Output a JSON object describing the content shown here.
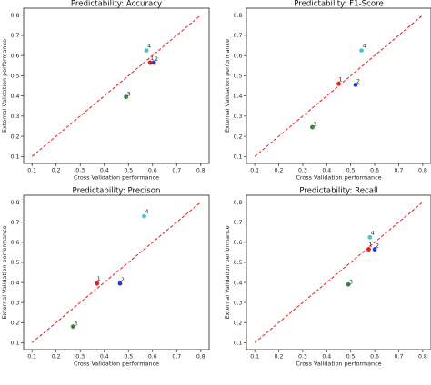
{
  "colors": {
    "diagonal": "#e8191b",
    "point_1": "#e8191b",
    "point_2": "#1f3bd6",
    "point_3": "#2e8b3a",
    "point_4": "#4cc7c7"
  },
  "chart_data": [
    {
      "type": "scatter",
      "title": "Predictability: Accuracy",
      "xlabel": "Cross Validation performance",
      "ylabel": "External Validation performance",
      "xlim": [
        0.1,
        0.8
      ],
      "ylim": [
        0.1,
        0.8
      ],
      "xticks": [
        "0.1",
        "0.2",
        "0.3",
        "0.4",
        "0.5",
        "0.6",
        "0.7",
        "0.8"
      ],
      "yticks": [
        "0.1",
        "0.2",
        "0.3",
        "0.4",
        "0.5",
        "0.6",
        "0.7",
        "0.8"
      ],
      "reference_line": "y = x",
      "points": [
        {
          "label": "1",
          "x": 0.59,
          "y": 0.565
        },
        {
          "label": "2",
          "x": 0.605,
          "y": 0.565
        },
        {
          "label": "3",
          "x": 0.49,
          "y": 0.395
        },
        {
          "label": "4",
          "x": 0.575,
          "y": 0.625
        }
      ]
    },
    {
      "type": "scatter",
      "title": "Predictability: F1-Score",
      "xlabel": "Cross Validation performance",
      "ylabel": "External Validation performance",
      "xlim": [
        0.1,
        0.8
      ],
      "ylim": [
        0.1,
        0.8
      ],
      "xticks": [
        "0.1",
        "0.2",
        "0.3",
        "0.4",
        "0.5",
        "0.6",
        "0.7",
        "0.8"
      ],
      "yticks": [
        "0.1",
        "0.2",
        "0.3",
        "0.4",
        "0.5",
        "0.6",
        "0.7",
        "0.8"
      ],
      "reference_line": "y = x",
      "points": [
        {
          "label": "1",
          "x": 0.45,
          "y": 0.46
        },
        {
          "label": "2",
          "x": 0.52,
          "y": 0.455
        },
        {
          "label": "3",
          "x": 0.34,
          "y": 0.245
        },
        {
          "label": "4",
          "x": 0.545,
          "y": 0.625
        }
      ]
    },
    {
      "type": "scatter",
      "title": "Predictability: Precison",
      "xlabel": "Cross Validation performance",
      "ylabel": "External Validation performance",
      "xlim": [
        0.1,
        0.8
      ],
      "ylim": [
        0.1,
        0.8
      ],
      "xticks": [
        "0.1",
        "0.2",
        "0.3",
        "0.4",
        "0.5",
        "0.6",
        "0.7",
        "0.8"
      ],
      "yticks": [
        "0.1",
        "0.2",
        "0.3",
        "0.4",
        "0.5",
        "0.6",
        "0.7",
        "0.8"
      ],
      "reference_line": "y = x",
      "points": [
        {
          "label": "1",
          "x": 0.37,
          "y": 0.395
        },
        {
          "label": "2",
          "x": 0.465,
          "y": 0.395
        },
        {
          "label": "3",
          "x": 0.27,
          "y": 0.18
        },
        {
          "label": "4",
          "x": 0.565,
          "y": 0.73
        }
      ]
    },
    {
      "type": "scatter",
      "title": "Predictability: Recall",
      "xlabel": "Cross Validation performance",
      "ylabel": "External Validation performance",
      "xlim": [
        0.1,
        0.8
      ],
      "ylim": [
        0.1,
        0.8
      ],
      "xticks": [
        "0.1",
        "0.2",
        "0.3",
        "0.4",
        "0.5",
        "0.6",
        "0.7",
        "0.8"
      ],
      "yticks": [
        "0.1",
        "0.2",
        "0.3",
        "0.4",
        "0.5",
        "0.6",
        "0.7",
        "0.8"
      ],
      "reference_line": "y = x",
      "points": [
        {
          "label": "1",
          "x": 0.575,
          "y": 0.565
        },
        {
          "label": "2",
          "x": 0.6,
          "y": 0.565
        },
        {
          "label": "3",
          "x": 0.49,
          "y": 0.39
        },
        {
          "label": "4",
          "x": 0.58,
          "y": 0.625
        }
      ]
    }
  ]
}
